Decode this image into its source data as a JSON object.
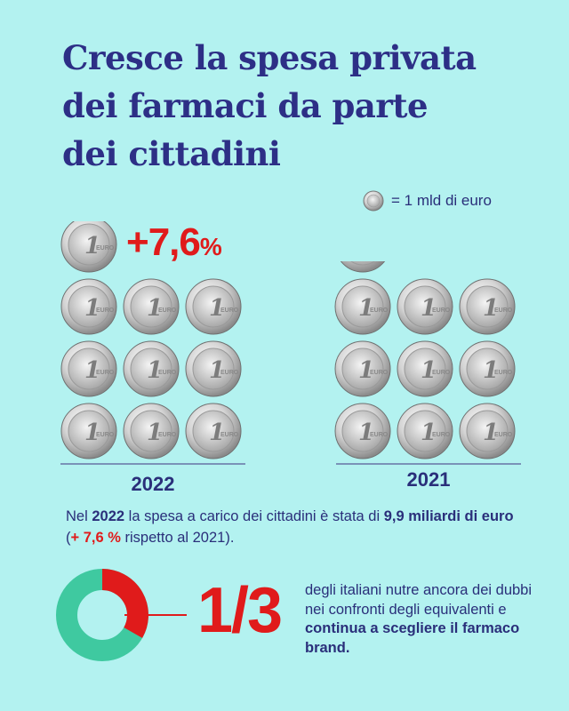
{
  "title": {
    "lines": [
      "Cresce la spesa privata",
      "dei farmaci da parte",
      "dei cittadini"
    ]
  },
  "legend": {
    "label": "= 1 mld di euro",
    "icon": "euro-coin-icon"
  },
  "coin_glyph": "1",
  "coin_ring_text": "EURO",
  "year_2022": {
    "label": "2022",
    "change": "+7,6",
    "change_unit": "%",
    "full_coins": 9,
    "partial_coin_fraction": 0.9
  },
  "year_2021": {
    "label": "2021",
    "full_coins": 9,
    "partial_coin_fraction": 0.2
  },
  "description": {
    "p1": "Nel ",
    "year": "2022",
    "p2": " la spesa a carico dei cittadini è stata di ",
    "amount": "9,9 miliardi di euro",
    "p3": " (",
    "change": "+ 7,6 %",
    "p4": " rispetto al 2021)."
  },
  "stat": {
    "fraction": "1/3",
    "fraction_value": 0.333,
    "t1": "degli italiani nutre ancora dei dubbi nei confronti degli equivalenti e ",
    "t2": "continua a scegliere il farmaco brand."
  },
  "colors": {
    "background": "#b3f2f0",
    "title": "#2d2f86",
    "accent_red": "#e01b1b",
    "donut_green": "#3fc9a0",
    "text": "#2a2f7a"
  }
}
